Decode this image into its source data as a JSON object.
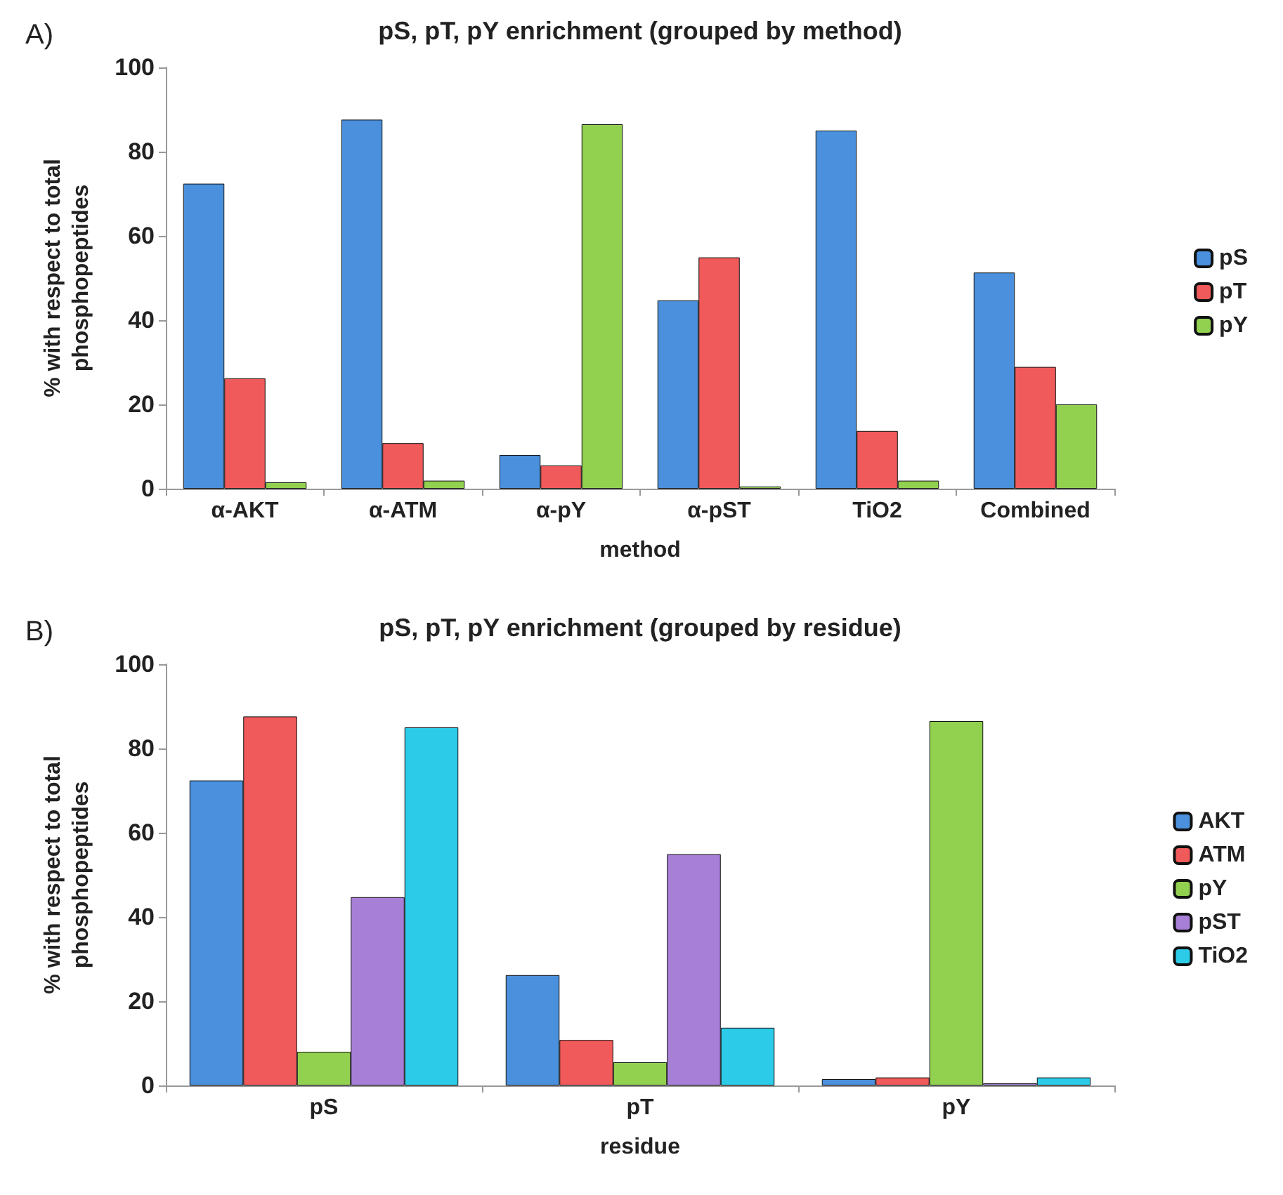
{
  "chart_data": [
    {
      "type": "bar",
      "title": "pS, pT, pY enrichment (grouped by method)",
      "xlabel": "method",
      "ylabel": "% with respect to total\nphosphopeptides",
      "annotations": [
        "A)"
      ],
      "categories": [
        "α-AKT",
        "α-ATM",
        "α-pY",
        "α-pST",
        "TiO2",
        "Combined"
      ],
      "series": [
        {
          "name": "pS",
          "color": "#4a90dc",
          "values": [
            72.4,
            87.6,
            8,
            44.7,
            85,
            51.3
          ]
        },
        {
          "name": "pT",
          "color": "#f05a5a",
          "values": [
            26.2,
            10.8,
            5.5,
            54.9,
            13.7,
            28.9
          ]
        },
        {
          "name": "pY",
          "color": "#92d050",
          "values": [
            1.5,
            1.9,
            86.5,
            0.5,
            1.9,
            20
          ]
        }
      ],
      "ylim": [
        0,
        100
      ],
      "yticks": [
        0,
        20,
        40,
        60,
        80,
        100
      ],
      "grid": false,
      "legend": "right"
    },
    {
      "type": "bar",
      "title": "pS, pT, pY enrichment (grouped by residue)",
      "xlabel": "residue",
      "ylabel": "% with respect to total\nphosphopeptides",
      "annotations": [
        "B)"
      ],
      "categories": [
        "pS",
        "pT",
        "pY"
      ],
      "series": [
        {
          "name": "AKT",
          "color": "#4a90dc",
          "values": [
            72.4,
            26.2,
            1.5
          ]
        },
        {
          "name": "ATM",
          "color": "#f05a5a",
          "values": [
            87.6,
            10.8,
            1.9
          ]
        },
        {
          "name": "pY",
          "color": "#92d050",
          "values": [
            8,
            5.5,
            86.5
          ]
        },
        {
          "name": "pST",
          "color": "#a77fd6",
          "values": [
            44.7,
            54.9,
            0.5
          ]
        },
        {
          "name": "TiO2",
          "color": "#2ccbe8",
          "values": [
            85,
            13.7,
            1.9
          ]
        }
      ],
      "ylim": [
        0,
        100
      ],
      "yticks": [
        0,
        20,
        40,
        60,
        80,
        100
      ],
      "grid": false,
      "legend": "right"
    }
  ]
}
